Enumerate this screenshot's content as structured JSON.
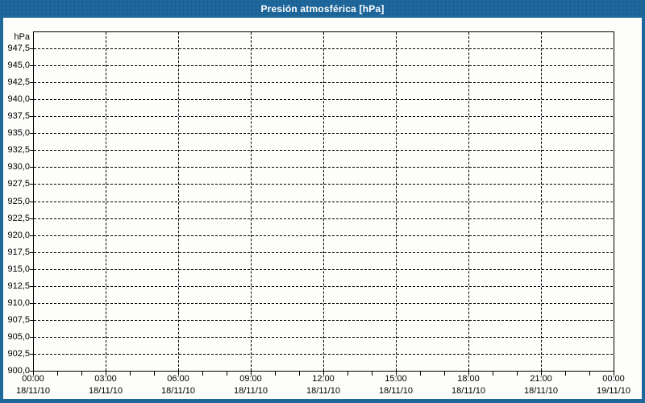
{
  "title_bar": {
    "title": "Presión atmosférica [hPa]"
  },
  "colors": {
    "frame": "#1e689c",
    "titlebar_bg": "#1e689c",
    "title_text": "#ffffff",
    "plot_bg": "#fdfdfb",
    "grid": "#000000",
    "label_text": "#000000"
  },
  "y_axis": {
    "unit": "hPa",
    "labels": [
      "947,5",
      "945,0",
      "942,5",
      "940,0",
      "937,5",
      "935,0",
      "932,5",
      "930,0",
      "927,5",
      "925,0",
      "922,5",
      "920,0",
      "917,5",
      "915,0",
      "912,5",
      "910,0",
      "907,5",
      "905,0",
      "902,5",
      "900,0"
    ]
  },
  "x_axis": {
    "ticks": [
      {
        "time": "00:00",
        "date": "18/11/10"
      },
      {
        "time": "03:00",
        "date": "18/11/10"
      },
      {
        "time": "06:00",
        "date": "18/11/10"
      },
      {
        "time": "09:00",
        "date": "18/11/10"
      },
      {
        "time": "12:00",
        "date": "18/11/10"
      },
      {
        "time": "15:00",
        "date": "18/11/10"
      },
      {
        "time": "18:00",
        "date": "18/11/10"
      },
      {
        "time": "21:00",
        "date": "18/11/10"
      },
      {
        "time": "00:00",
        "date": "19/11/10"
      }
    ]
  },
  "chart_data": {
    "type": "line",
    "title": "Presión atmosférica [hPa]",
    "xlabel": "",
    "ylabel": "hPa",
    "ylim": [
      900,
      950
    ],
    "ytick_step": 2.5,
    "ytick_labels": [
      "947,5",
      "945,0",
      "942,5",
      "940,0",
      "937,5",
      "935,0",
      "932,5",
      "930,0",
      "927,5",
      "925,0",
      "922,5",
      "920,0",
      "917,5",
      "915,0",
      "912,5",
      "910,0",
      "907,5",
      "905,0",
      "902,5",
      "900,0"
    ],
    "x": [
      "00:00 18/11/10",
      "03:00 18/11/10",
      "06:00 18/11/10",
      "09:00 18/11/10",
      "12:00 18/11/10",
      "15:00 18/11/10",
      "18:00 18/11/10",
      "21:00 18/11/10",
      "00:00 19/11/10"
    ],
    "x_major_step_hours": 3,
    "x_minor_step_hours": 1,
    "grid": "dashed-both-axes",
    "legend": "none",
    "series": []
  }
}
